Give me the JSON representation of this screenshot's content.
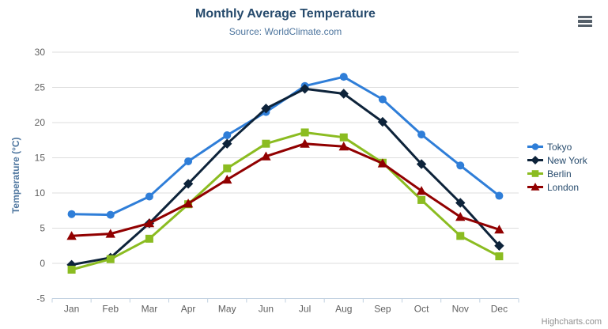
{
  "header": {
    "title": "Monthly Average Temperature",
    "subtitle": "Source: WorldClimate.com"
  },
  "icons": {
    "context_menu": "hamburger-menu"
  },
  "credits": {
    "label": "Highcharts.com"
  },
  "chart_data": {
    "type": "line",
    "title": "Monthly Average Temperature",
    "subtitle": "Source: WorldClimate.com",
    "categories": [
      "Jan",
      "Feb",
      "Mar",
      "Apr",
      "May",
      "Jun",
      "Jul",
      "Aug",
      "Sep",
      "Oct",
      "Nov",
      "Dec"
    ],
    "xlabel": "",
    "ylabel": "Temperature (°C)",
    "ylim": [
      -5,
      30
    ],
    "ytick_interval": 5,
    "grid": true,
    "legend_position": "right",
    "gridline_color": "#dddddd",
    "xaxis_line_color": "#c0d0e0",
    "series": [
      {
        "name": "Tokyo",
        "color": "#2f7ed8",
        "marker": "circle",
        "values": [
          7.0,
          6.9,
          9.5,
          14.5,
          18.2,
          21.5,
          25.2,
          26.5,
          23.3,
          18.3,
          13.9,
          9.6
        ]
      },
      {
        "name": "New York",
        "color": "#0d233a",
        "marker": "diamond",
        "values": [
          -0.2,
          0.8,
          5.7,
          11.3,
          17.0,
          22.0,
          24.8,
          24.1,
          20.1,
          14.1,
          8.6,
          2.5
        ]
      },
      {
        "name": "Berlin",
        "color": "#8bbc21",
        "marker": "square",
        "values": [
          -0.9,
          0.6,
          3.5,
          8.4,
          13.5,
          17.0,
          18.6,
          17.9,
          14.3,
          9.0,
          3.9,
          1.0
        ]
      },
      {
        "name": "London",
        "color": "#910000",
        "marker": "triangle",
        "values": [
          3.9,
          4.2,
          5.7,
          8.5,
          11.9,
          15.2,
          17.0,
          16.6,
          14.2,
          10.3,
          6.6,
          4.8
        ]
      }
    ]
  }
}
